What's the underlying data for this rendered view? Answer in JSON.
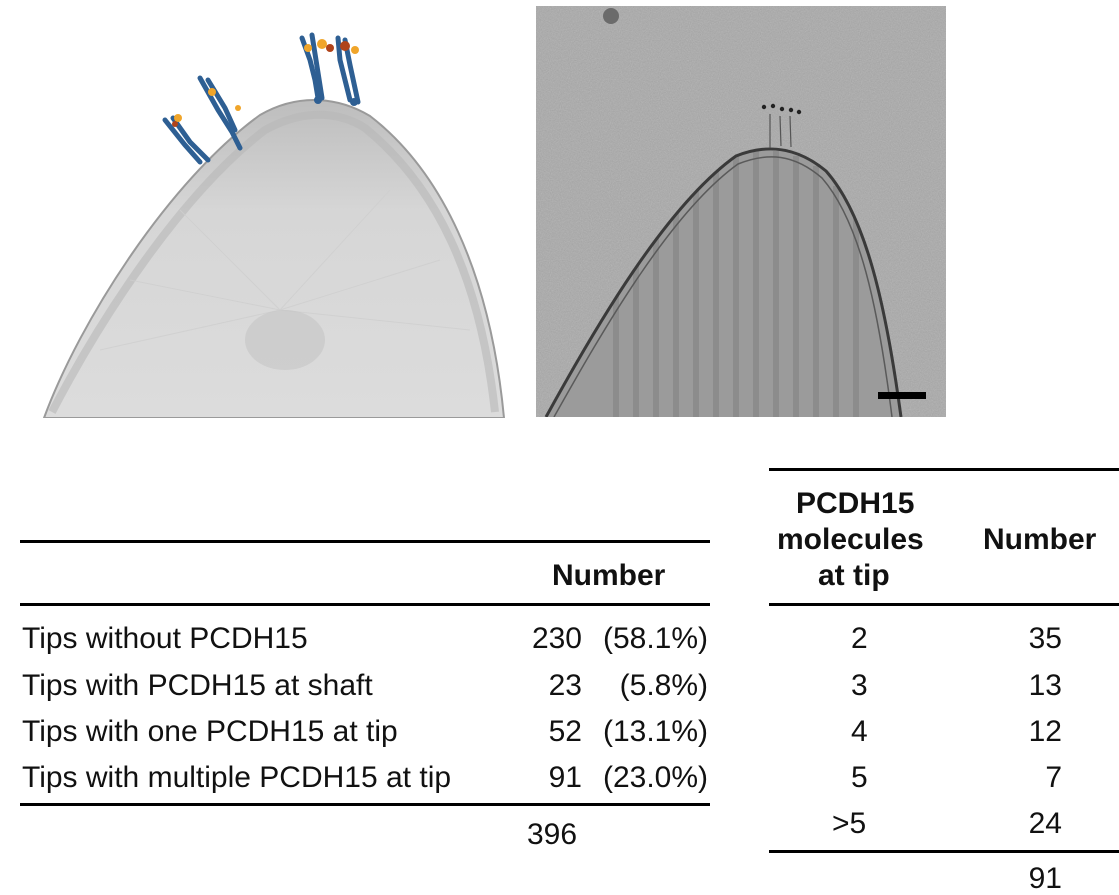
{
  "figure": {
    "left_panel": {
      "icon": "membrane-tip-model-with-pcdh15-molecules"
    },
    "right_panel": {
      "icon": "cryo-em-micrograph-of-stereocilium-tip",
      "scale_bar": "scale-bar"
    }
  },
  "table1": {
    "header_number": "Number",
    "rows": [
      {
        "label": "Tips without PCDH15",
        "count": "230",
        "pct": "(58.1%)"
      },
      {
        "label": "Tips with PCDH15 at shaft",
        "count": "23",
        "pct": "(5.8%)"
      },
      {
        "label": "Tips with one PCDH15 at tip",
        "count": "52",
        "pct": "(13.1%)"
      },
      {
        "label": "Tips with multiple PCDH15 at tip",
        "count": "91",
        "pct": "(23.0%)"
      }
    ],
    "total": "396"
  },
  "table2": {
    "header_molecules_line1": "PCDH15",
    "header_molecules_line2": "molecules",
    "header_molecules_line3": "at tip",
    "header_number": "Number",
    "rows": [
      {
        "molecules": "2",
        "number": "35"
      },
      {
        "molecules": "3",
        "number": "13"
      },
      {
        "molecules": "4",
        "number": "12"
      },
      {
        "molecules": "5",
        "number": "7"
      },
      {
        "molecules": ">5",
        "number": "24"
      }
    ],
    "total": "91"
  }
}
